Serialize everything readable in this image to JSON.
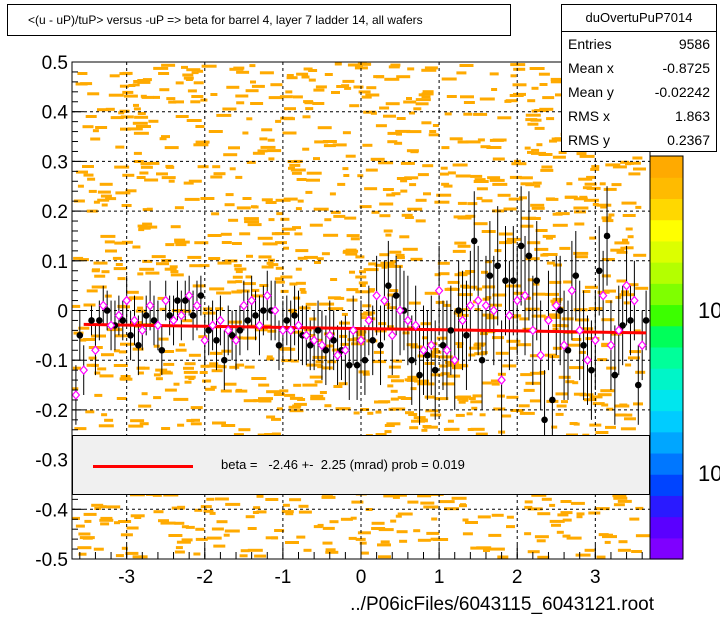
{
  "title": "<(u - uP)/tuP> versus  -uP => beta for barrel 4, layer 7 ladder 14, all wafers",
  "stats": {
    "name": "duOvertuPuP7014",
    "rows": [
      {
        "label": "Entries",
        "value": "9586"
      },
      {
        "label": "Mean x",
        "value": "-0.8725"
      },
      {
        "label": "Mean y",
        "value": "-0.02242"
      },
      {
        "label": "RMS x",
        "value": "1.863"
      },
      {
        "label": "RMS y",
        "value": "0.2367"
      }
    ]
  },
  "legend": {
    "text": "beta =   -2.46 +-  2.25 (mrad) prob = 0.019",
    "color": "#ff0000"
  },
  "x_title": "../P06icFiles/6043115_6043121.root",
  "zaxis_labels": [
    "10",
    "10"
  ],
  "colors": {
    "background_cells": "#ffaa00",
    "fit_line": "#ff0000",
    "black_points": "#000000",
    "pink_points": "#ff00ff",
    "legend_fill": "#f0f0f0"
  },
  "chart_data": {
    "type": "scatter",
    "title": "<(u - uP)/tuP> versus  -uP => beta for barrel 4, layer 7 ladder 14, all wafers",
    "xlabel": "../P06icFiles/6043115_6043121.root",
    "ylabel": "",
    "xlim": [
      -3.7,
      3.7
    ],
    "ylim": [
      -0.5,
      0.5
    ],
    "xticks": [
      "-3",
      "-2",
      "-1",
      "0",
      "1",
      "2",
      "3"
    ],
    "yticks": [
      "0.5",
      "0.4",
      "0.3",
      "0.2",
      "0.1",
      "0",
      "-0.1",
      "-0.2",
      "-0.3",
      "-0.4",
      "-0.5"
    ],
    "grid": true,
    "fit": {
      "x": [
        -3.55,
        3.65
      ],
      "y": [
        -0.028,
        -0.045
      ]
    },
    "series": [
      {
        "marker": "filled-circle",
        "x": [
          -3.6,
          -3.45,
          -3.35,
          -3.25,
          -3.15,
          -3.05,
          -2.95,
          -2.85,
          -2.75,
          -2.65,
          -2.55,
          -2.45,
          -2.35,
          -2.25,
          -2.15,
          -2.05,
          -1.95,
          -1.85,
          -1.75,
          -1.65,
          -1.55,
          -1.45,
          -1.35,
          -1.25,
          -1.15,
          -1.05,
          -0.95,
          -0.85,
          -0.75,
          -0.65,
          -0.55,
          -0.45,
          -0.35,
          -0.25,
          -0.15,
          -0.05,
          0.05,
          0.15,
          0.25,
          0.35,
          0.45,
          0.55,
          0.65,
          0.75,
          0.85,
          0.95,
          1.05,
          1.15,
          1.25,
          1.35,
          1.45,
          1.55,
          1.65,
          1.75,
          1.85,
          1.95,
          2.05,
          2.15,
          2.25,
          2.35,
          2.45,
          2.55,
          2.65,
          2.75,
          2.85,
          2.95,
          3.05,
          3.15,
          3.25,
          3.35,
          3.45,
          3.55,
          3.65
        ],
        "y": [
          -0.05,
          -0.02,
          -0.02,
          0.0,
          -0.03,
          -0.02,
          -0.05,
          -0.07,
          -0.01,
          -0.02,
          -0.08,
          -0.01,
          0.02,
          0.02,
          -0.01,
          0.03,
          -0.04,
          -0.06,
          -0.1,
          -0.05,
          -0.04,
          -0.02,
          -0.01,
          0.0,
          0.0,
          -0.07,
          -0.02,
          -0.01,
          -0.05,
          -0.07,
          -0.04,
          -0.08,
          -0.06,
          -0.08,
          -0.11,
          -0.11,
          -0.1,
          -0.06,
          -0.07,
          0.05,
          0.03,
          0.0,
          -0.1,
          -0.13,
          -0.09,
          -0.12,
          -0.07,
          -0.04,
          0.0,
          -0.05,
          0.14,
          -0.1,
          0.07,
          0.09,
          0.06,
          0.06,
          0.13,
          0.11,
          0.06,
          -0.22,
          -0.18,
          0.0,
          -0.08,
          0.07,
          -0.07,
          -0.12,
          0.08,
          0.15,
          -0.13,
          -0.03,
          -0.02,
          -0.15,
          -0.02
        ],
        "err": [
          0.05,
          0.03,
          0.04,
          0.04,
          0.05,
          0.04,
          0.05,
          0.06,
          0.04,
          0.05,
          0.05,
          0.04,
          0.04,
          0.04,
          0.05,
          0.04,
          0.05,
          0.06,
          0.06,
          0.05,
          0.05,
          0.06,
          0.05,
          0.05,
          0.06,
          0.05,
          0.05,
          0.06,
          0.06,
          0.05,
          0.06,
          0.07,
          0.06,
          0.06,
          0.07,
          0.07,
          0.07,
          0.07,
          0.08,
          0.09,
          0.08,
          0.08,
          0.09,
          0.1,
          0.09,
          0.1,
          0.09,
          0.09,
          0.1,
          0.11,
          0.1,
          0.1,
          0.11,
          0.12,
          0.11,
          0.11,
          0.12,
          0.13,
          0.12,
          0.1,
          0.09,
          0.11,
          0.1,
          0.09,
          0.11,
          0.1,
          0.09,
          0.1,
          0.1,
          0.08,
          0.07,
          0.08,
          0.06
        ]
      },
      {
        "marker": "open-diamond",
        "x": [
          -3.65,
          -3.55,
          -3.4,
          -3.3,
          -3.2,
          -3.1,
          -3.0,
          -2.9,
          -2.8,
          -2.7,
          -2.6,
          -2.5,
          -2.4,
          -2.3,
          -2.2,
          -2.1,
          -2.0,
          -1.9,
          -1.8,
          -1.7,
          -1.6,
          -1.5,
          -1.4,
          -1.3,
          -1.2,
          -1.1,
          -1.0,
          -0.9,
          -0.8,
          -0.7,
          -0.6,
          -0.5,
          -0.4,
          -0.3,
          -0.2,
          -0.1,
          0.0,
          0.1,
          0.2,
          0.3,
          0.4,
          0.5,
          0.6,
          0.7,
          0.8,
          0.9,
          1.0,
          1.1,
          1.2,
          1.3,
          1.4,
          1.5,
          1.6,
          1.7,
          1.8,
          1.9,
          2.0,
          2.1,
          2.2,
          2.3,
          2.4,
          2.5,
          2.6,
          2.7,
          2.8,
          2.9,
          3.0,
          3.1,
          3.2,
          3.3,
          3.4,
          3.5,
          3.6
        ],
        "y": [
          -0.17,
          -0.12,
          -0.08,
          0.01,
          -0.03,
          -0.01,
          0.02,
          -0.02,
          -0.04,
          0.01,
          -0.03,
          0.02,
          -0.02,
          -0.01,
          0.03,
          0.01,
          -0.06,
          -0.03,
          -0.02,
          -0.04,
          -0.06,
          0.01,
          0.02,
          -0.03,
          0.03,
          0.0,
          -0.04,
          -0.04,
          -0.03,
          -0.05,
          -0.06,
          -0.07,
          -0.05,
          -0.09,
          -0.08,
          -0.04,
          -0.06,
          -0.02,
          0.03,
          0.02,
          -0.05,
          0.0,
          -0.02,
          -0.03,
          -0.08,
          -0.07,
          0.04,
          -0.08,
          -0.1,
          -0.02,
          0.01,
          0.02,
          0.01,
          0.0,
          -0.14,
          -0.01,
          0.02,
          0.03,
          -0.04,
          -0.09,
          -0.02,
          0.01,
          -0.07,
          0.04,
          -0.04,
          -0.1,
          -0.06,
          0.03,
          -0.07,
          -0.04,
          0.05,
          0.02,
          -0.07
        ],
        "err": [
          0.06,
          0.05,
          0.05,
          0.04,
          0.05,
          0.04,
          0.05,
          0.05,
          0.04,
          0.05,
          0.05,
          0.04,
          0.05,
          0.05,
          0.04,
          0.05,
          0.05,
          0.05,
          0.05,
          0.05,
          0.06,
          0.05,
          0.05,
          0.06,
          0.05,
          0.06,
          0.06,
          0.06,
          0.07,
          0.06,
          0.06,
          0.07,
          0.07,
          0.06,
          0.07,
          0.07,
          0.08,
          0.07,
          0.08,
          0.08,
          0.08,
          0.09,
          0.09,
          0.08,
          0.09,
          0.1,
          0.09,
          0.1,
          0.1,
          0.1,
          0.11,
          0.11,
          0.1,
          0.11,
          0.12,
          0.11,
          0.11,
          0.12,
          0.11,
          0.11,
          0.1,
          0.1,
          0.11,
          0.1,
          0.1,
          0.09,
          0.1,
          0.09,
          0.09,
          0.09,
          0.08,
          0.08,
          0.07
        ]
      }
    ]
  }
}
